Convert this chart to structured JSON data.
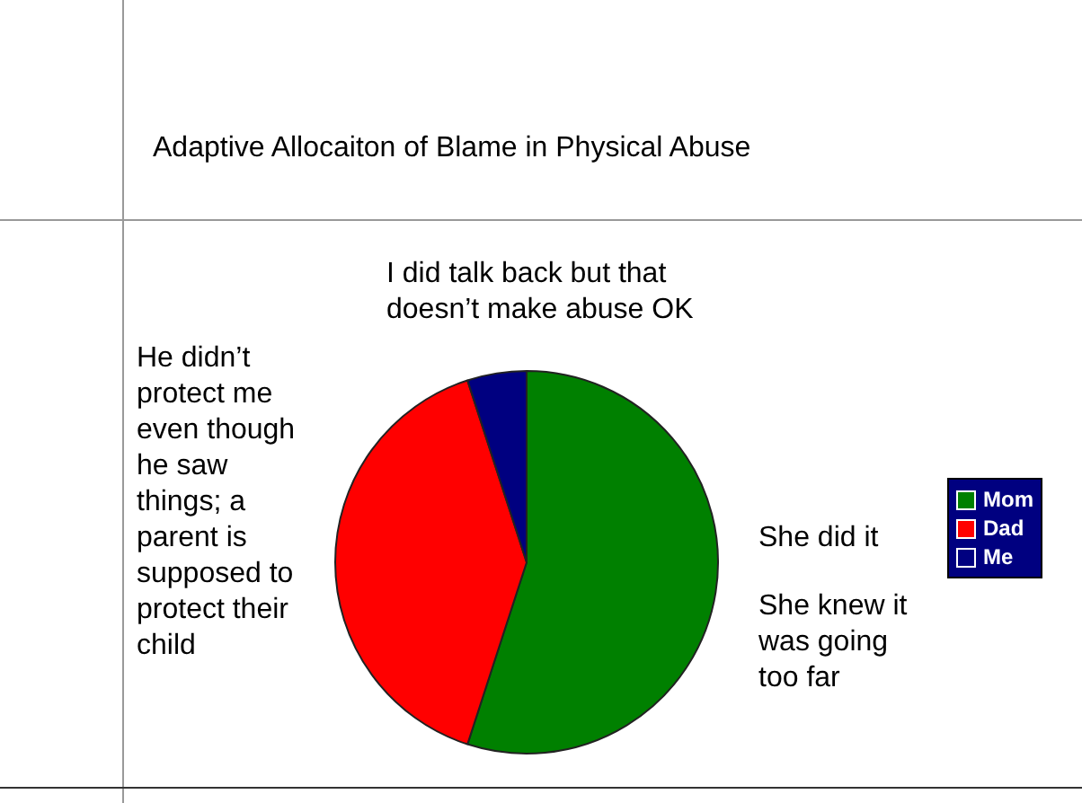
{
  "chart_data": {
    "type": "pie",
    "title": "Adaptive Allocaiton of Blame in Physical Abuse",
    "categories": [
      "Mom",
      "Dad",
      "Me"
    ],
    "values": [
      55,
      40,
      5
    ],
    "colors": [
      "#008000",
      "#ff0000",
      "#000080"
    ],
    "legend": "right",
    "annotations": [
      "I did talk back but that doesn’t make abuse OK",
      "He didn’t protect me even though he saw things; a parent is supposed to protect their child",
      "She did it",
      "She knew it was going too far"
    ]
  }
}
